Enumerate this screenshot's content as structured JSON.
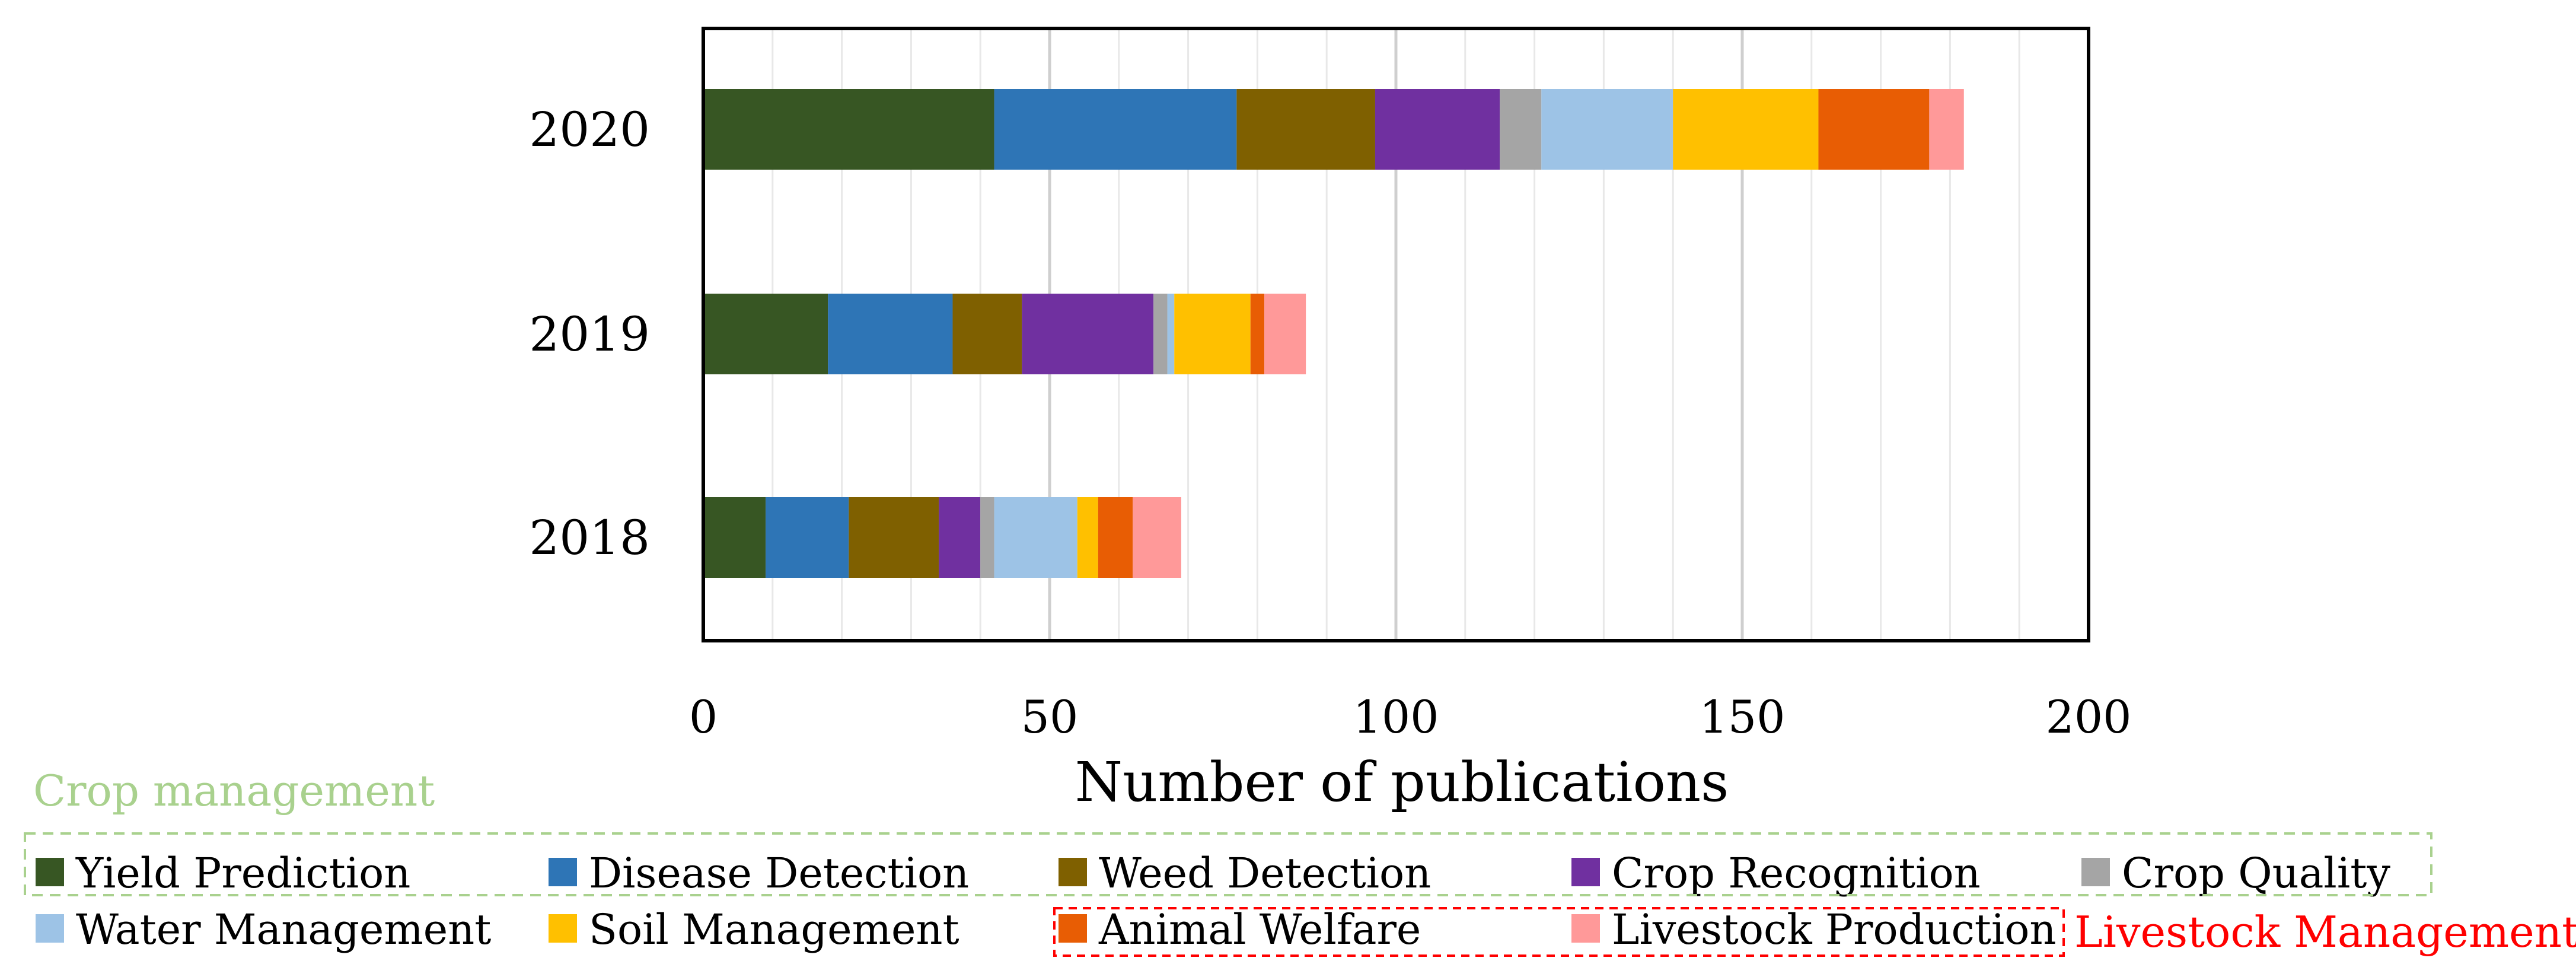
{
  "chart_data": {
    "type": "bar",
    "orientation": "horizontal",
    "stacked": true,
    "categories": [
      "2020",
      "2019",
      "2018"
    ],
    "series": [
      {
        "name": "Yield Prediction",
        "color": "#375623",
        "values": [
          42,
          18,
          9
        ]
      },
      {
        "name": "Disease Detection",
        "color": "#2E75B6",
        "values": [
          35,
          18,
          12
        ]
      },
      {
        "name": "Weed Detection",
        "color": "#7F6000",
        "values": [
          20,
          10,
          13
        ]
      },
      {
        "name": "Crop Recognition",
        "color": "#7030A0",
        "values": [
          18,
          19,
          6
        ]
      },
      {
        "name": "Crop Quality",
        "color": "#A5A5A5",
        "values": [
          6,
          2,
          2
        ]
      },
      {
        "name": "Water Management",
        "color": "#9DC3E6",
        "values": [
          19,
          1,
          12
        ]
      },
      {
        "name": "Soil Management",
        "color": "#FFC000",
        "values": [
          21,
          11,
          3
        ]
      },
      {
        "name": "Animal Welfare",
        "color": "#E85D04",
        "values": [
          16,
          2,
          5
        ]
      },
      {
        "name": "Livestock Production",
        "color": "#FF9999",
        "values": [
          5,
          6,
          7
        ]
      }
    ],
    "xlabel": "Number of publications",
    "ylabel": "",
    "xlim": [
      0,
      200
    ],
    "xticks": [
      "0",
      "50",
      "100",
      "150",
      "200"
    ],
    "grid": true,
    "groups": [
      {
        "name": "Crop management",
        "color": "#A9D18E",
        "members": [
          "Yield Prediction",
          "Disease Detection",
          "Weed Detection",
          "Crop Recognition",
          "Crop Quality",
          "Water Management",
          "Soil Management"
        ]
      },
      {
        "name": "Livestock Management",
        "color": "#FF0000",
        "members": [
          "Animal Welfare",
          "Livestock Production"
        ]
      }
    ]
  }
}
